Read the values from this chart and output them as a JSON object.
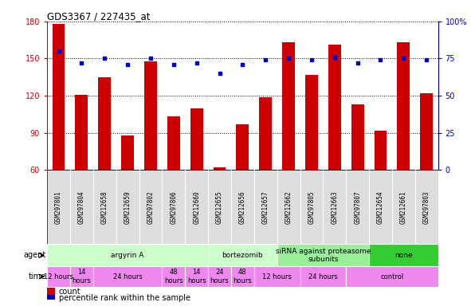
{
  "title": "GDS3367 / 227435_at",
  "samples": [
    "GSM297801",
    "GSM297804",
    "GSM212658",
    "GSM212659",
    "GSM297802",
    "GSM297806",
    "GSM212660",
    "GSM212655",
    "GSM212656",
    "GSM212657",
    "GSM212662",
    "GSM297805",
    "GSM212663",
    "GSM297807",
    "GSM212654",
    "GSM212661",
    "GSM297803"
  ],
  "counts": [
    178,
    121,
    135,
    88,
    148,
    103,
    110,
    62,
    97,
    119,
    163,
    137,
    161,
    113,
    92,
    163,
    122
  ],
  "percentiles": [
    80,
    72,
    75,
    71,
    75,
    71,
    72,
    65,
    71,
    74,
    75,
    74,
    76,
    72,
    74,
    75,
    74
  ],
  "ylim_left": [
    60,
    180
  ],
  "ylim_right": [
    0,
    100
  ],
  "yticks_left": [
    60,
    90,
    120,
    150,
    180
  ],
  "yticks_right": [
    0,
    25,
    50,
    75,
    100
  ],
  "bar_color": "#cc0000",
  "dot_color": "#0000cc",
  "agent_groups": [
    {
      "label": "argyrin A",
      "start": 0,
      "end": 7,
      "color": "#ccffcc"
    },
    {
      "label": "bortezomib",
      "start": 7,
      "end": 10,
      "color": "#ccffcc"
    },
    {
      "label": "siRNA against proteasome\nsubunits",
      "start": 10,
      "end": 14,
      "color": "#99ee99"
    },
    {
      "label": "none",
      "start": 14,
      "end": 17,
      "color": "#33cc33"
    }
  ],
  "time_groups": [
    {
      "label": "12 hours",
      "start": 0,
      "end": 1
    },
    {
      "label": "14\nhours",
      "start": 1,
      "end": 2
    },
    {
      "label": "24 hours",
      "start": 2,
      "end": 5
    },
    {
      "label": "48\nhours",
      "start": 5,
      "end": 6
    },
    {
      "label": "14\nhours",
      "start": 6,
      "end": 7
    },
    {
      "label": "24\nhours",
      "start": 7,
      "end": 8
    },
    {
      "label": "48\nhours",
      "start": 8,
      "end": 9
    },
    {
      "label": "12 hours",
      "start": 9,
      "end": 11
    },
    {
      "label": "24 hours",
      "start": 11,
      "end": 13
    },
    {
      "label": "control",
      "start": 13,
      "end": 17
    }
  ],
  "time_color": "#ee88ee",
  "sample_bg": "#dddddd",
  "legend": [
    {
      "label": "count",
      "color": "#cc0000"
    },
    {
      "label": "percentile rank within the sample",
      "color": "#0000cc"
    }
  ]
}
